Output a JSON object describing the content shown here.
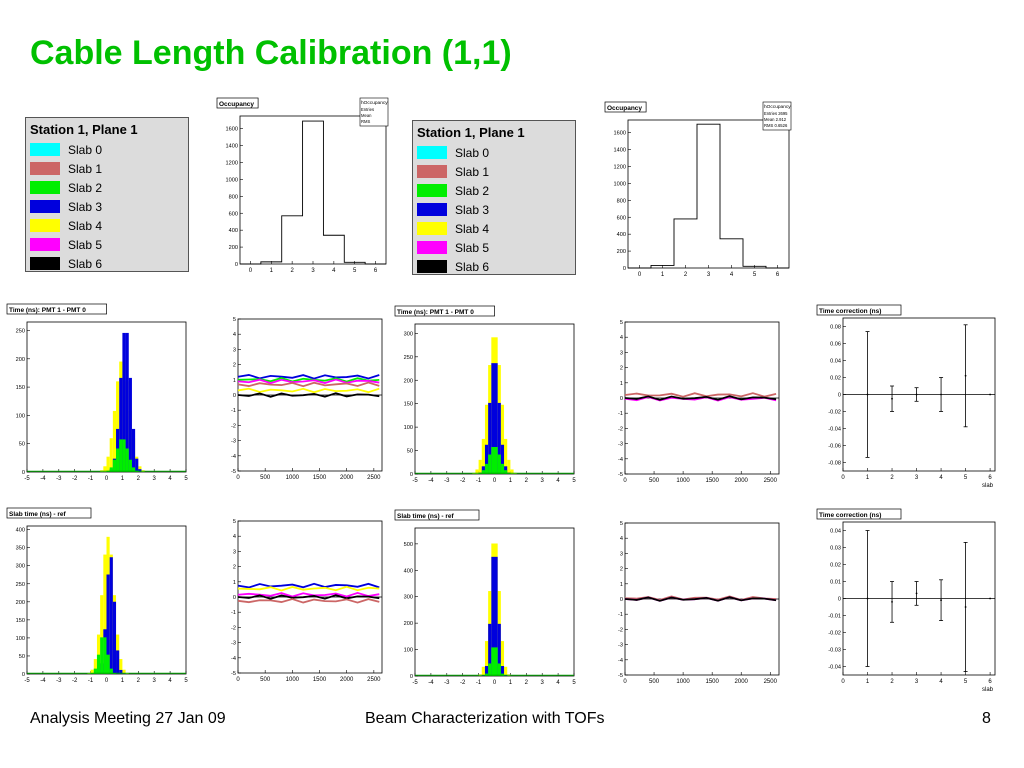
{
  "slide": {
    "title": "Cable Length Calibration (1,1)",
    "footer_left": "Analysis Meeting 27 Jan 09",
    "footer_center": "Beam Characterization with TOFs",
    "page_number": "8"
  },
  "colors": {
    "title": "#00c000",
    "slab0": "#00ffff",
    "slab1": "#cc6666",
    "slab2": "#00ee00",
    "slab3": "#0000dd",
    "slab4": "#ffff00",
    "slab5": "#ff00ff",
    "slab6": "#000000"
  },
  "legends": [
    {
      "title": "Station 1, Plane 1",
      "entries": [
        "Slab 0",
        "Slab 1",
        "Slab 2",
        "Slab 3",
        "Slab 4",
        "Slab 5",
        "Slab 6"
      ]
    },
    {
      "title": "Station 1, Plane 1",
      "entries": [
        "Slab 0",
        "Slab 1",
        "Slab 2",
        "Slab 3",
        "Slab 4",
        "Slab 5",
        "Slab 6"
      ]
    }
  ],
  "chart_data": [
    {
      "type": "bar",
      "title": "Occupancy",
      "stats_box": "hOccupancy",
      "stats_lines": [
        "Entries",
        "Mean",
        "RMS"
      ],
      "x_ticks": [
        "0",
        "1",
        "2",
        "3",
        "4",
        "5",
        "6"
      ],
      "y_ticks": [
        "0",
        "200",
        "400",
        "600",
        "800",
        "1000",
        "1200",
        "1400",
        "1600"
      ],
      "xlim": [
        -0.5,
        6.5
      ],
      "ylim": [
        0,
        1750
      ],
      "bins": [
        0,
        1,
        2,
        3,
        4,
        5,
        6
      ],
      "values": [
        0,
        25,
        570,
        1690,
        340,
        20,
        0
      ]
    },
    {
      "type": "bar",
      "title": "Occupancy",
      "stats_box": "hOccupancy",
      "stats_lines": [
        "Entries 2695",
        "Mean 2.912",
        "RMS 0.6526"
      ],
      "x_ticks": [
        "0",
        "1",
        "2",
        "3",
        "4",
        "5",
        "6"
      ],
      "y_ticks": [
        "0",
        "200",
        "400",
        "600",
        "800",
        "1000",
        "1200",
        "1400",
        "1600"
      ],
      "xlim": [
        -0.5,
        6.5
      ],
      "ylim": [
        0,
        1750
      ],
      "bins": [
        0,
        1,
        2,
        3,
        4,
        5,
        6
      ],
      "values": [
        0,
        30,
        580,
        1700,
        345,
        20,
        0
      ]
    },
    {
      "type": "bar",
      "title": "Time (ns): PMT 1 - PMT 0",
      "x_ticks": [
        "-5",
        "-4",
        "-3",
        "-2",
        "-1",
        "0",
        "1",
        "2",
        "3",
        "4",
        "5"
      ],
      "y_ticks": [
        "0",
        "50",
        "100",
        "150",
        "200",
        "250"
      ],
      "xlim": [
        -5,
        5
      ],
      "ylim": [
        0,
        265
      ],
      "series": [
        {
          "name": "Slab 4",
          "color": "slab4",
          "center": 1.0,
          "sigma": 0.45,
          "peak": 200
        },
        {
          "name": "Slab 3",
          "color": "slab3",
          "center": 1.2,
          "sigma": 0.32,
          "peak": 258
        },
        {
          "name": "Slab 2",
          "color": "slab2",
          "center": 1.0,
          "sigma": 0.35,
          "peak": 60
        }
      ]
    },
    {
      "type": "line",
      "title": "",
      "x_ticks": [
        "0",
        "500",
        "1000",
        "1500",
        "2000",
        "2500"
      ],
      "y_ticks": [
        "-5",
        "-4",
        "-3",
        "-2",
        "-1",
        "0",
        "1",
        "2",
        "3",
        "4",
        "5"
      ],
      "xlim": [
        0,
        2650
      ],
      "ylim": [
        -5,
        5
      ],
      "series": [
        {
          "name": "Slab 3",
          "color": "slab3",
          "y": 1.2
        },
        {
          "name": "Slab 2",
          "color": "slab2",
          "y": 1.0
        },
        {
          "name": "Slab 5",
          "color": "slab5",
          "y": 0.9
        },
        {
          "name": "Slab 1",
          "color": "slab1",
          "y": 0.7
        },
        {
          "name": "Slab 4",
          "color": "slab4",
          "y": 0.3
        },
        {
          "name": "Slab 6",
          "color": "slab6",
          "y": 0.0
        }
      ]
    },
    {
      "type": "bar",
      "title": "Time (ns): PMT 1 - PMT 0",
      "x_ticks": [
        "-5",
        "-4",
        "-3",
        "-2",
        "-1",
        "0",
        "1",
        "2",
        "3",
        "4",
        "5"
      ],
      "y_ticks": [
        "0",
        "50",
        "100",
        "150",
        "200",
        "250",
        "300"
      ],
      "xlim": [
        -5,
        5
      ],
      "ylim": [
        0,
        320
      ],
      "series": [
        {
          "name": "Slab 4",
          "color": "slab4",
          "center": 0.0,
          "sigma": 0.42,
          "peak": 300
        },
        {
          "name": "Slab 3",
          "color": "slab3",
          "center": 0.0,
          "sigma": 0.3,
          "peak": 250
        },
        {
          "name": "Slab 2",
          "color": "slab2",
          "center": 0.0,
          "sigma": 0.35,
          "peak": 60
        }
      ]
    },
    {
      "type": "line",
      "title": "",
      "x_ticks": [
        "0",
        "500",
        "1000",
        "1500",
        "2000",
        "2500"
      ],
      "y_ticks": [
        "-5",
        "-4",
        "-3",
        "-2",
        "-1",
        "0",
        "1",
        "2",
        "3",
        "4",
        "5"
      ],
      "xlim": [
        0,
        2650
      ],
      "ylim": [
        -5,
        5
      ],
      "series": [
        {
          "name": "Slab 1",
          "color": "slab1",
          "y": 0.2
        },
        {
          "name": "Slab 5",
          "color": "slab5",
          "y": -0.05
        },
        {
          "name": "Slab 6",
          "color": "slab6",
          "y": 0.0
        }
      ]
    },
    {
      "type": "scatter",
      "title": "Time correction (ns)",
      "xlabel": "slab",
      "x_ticks": [
        "0",
        "1",
        "2",
        "3",
        "4",
        "5",
        "6"
      ],
      "y_ticks": [
        "-0.08",
        "-0.06",
        "-0.04",
        "-0.02",
        "0",
        "0.02",
        "0.04",
        "0.06",
        "0.08"
      ],
      "xlim": [
        0,
        6.2
      ],
      "ylim": [
        -0.09,
        0.09
      ],
      "points": [
        {
          "x": 1,
          "y": 0.0,
          "err": 0.074
        },
        {
          "x": 2,
          "y": -0.005,
          "err": 0.015
        },
        {
          "x": 3,
          "y": 0.0,
          "err": 0.008
        },
        {
          "x": 4,
          "y": 0.0,
          "err": 0.02
        },
        {
          "x": 5,
          "y": 0.022,
          "err": 0.06
        },
        {
          "x": 6,
          "y": 0.0,
          "err": 0.0
        }
      ]
    },
    {
      "type": "bar",
      "title": "Slab time (ns) - ref",
      "x_ticks": [
        "-5",
        "-4",
        "-3",
        "-2",
        "-1",
        "0",
        "1",
        "2",
        "3",
        "4",
        "5"
      ],
      "y_ticks": [
        "0",
        "50",
        "100",
        "150",
        "200",
        "250",
        "300",
        "350",
        "400"
      ],
      "xlim": [
        -5,
        5
      ],
      "ylim": [
        0,
        410
      ],
      "series": [
        {
          "name": "Slab 4",
          "color": "slab4",
          "center": 0.1,
          "sigma": 0.38,
          "peak": 380
        },
        {
          "name": "Slab 3",
          "color": "slab3",
          "center": 0.25,
          "sigma": 0.25,
          "peak": 330
        },
        {
          "name": "Slab 2",
          "color": "slab2",
          "center": -0.2,
          "sigma": 0.25,
          "peak": 110
        }
      ]
    },
    {
      "type": "line",
      "title": "",
      "x_ticks": [
        "0",
        "500",
        "1000",
        "1500",
        "2000",
        "2500"
      ],
      "y_ticks": [
        "-5",
        "-4",
        "-3",
        "-2",
        "-1",
        "0",
        "1",
        "2",
        "3",
        "4",
        "5"
      ],
      "xlim": [
        0,
        2650
      ],
      "ylim": [
        -5,
        5
      ],
      "series": [
        {
          "name": "Slab 3",
          "color": "slab3",
          "y": 0.75
        },
        {
          "name": "Slab 4",
          "color": "slab4",
          "y": 0.55
        },
        {
          "name": "Slab 5",
          "color": "slab5",
          "y": 0.15
        },
        {
          "name": "Slab 6",
          "color": "slab6",
          "y": 0.0
        },
        {
          "name": "Slab 1",
          "color": "slab1",
          "y": -0.25
        }
      ]
    },
    {
      "type": "bar",
      "title": "Slab time (ns) - ref",
      "x_ticks": [
        "-5",
        "-4",
        "-3",
        "-2",
        "-1",
        "0",
        "1",
        "2",
        "3",
        "4",
        "5"
      ],
      "y_ticks": [
        "0",
        "100",
        "200",
        "300",
        "400",
        "500"
      ],
      "xlim": [
        -5,
        5
      ],
      "ylim": [
        0,
        560
      ],
      "series": [
        {
          "name": "Slab 4",
          "color": "slab4",
          "center": 0.0,
          "sigma": 0.3,
          "peak": 530
        },
        {
          "name": "Slab 3",
          "color": "slab3",
          "center": 0.0,
          "sigma": 0.22,
          "peak": 500
        },
        {
          "name": "Slab 2",
          "color": "slab2",
          "center": 0.0,
          "sigma": 0.22,
          "peak": 120
        }
      ]
    },
    {
      "type": "line",
      "title": "",
      "x_ticks": [
        "0",
        "500",
        "1000",
        "1500",
        "2000",
        "2500"
      ],
      "y_ticks": [
        "-5",
        "-4",
        "-3",
        "-2",
        "-1",
        "0",
        "1",
        "2",
        "3",
        "4",
        "5"
      ],
      "xlim": [
        0,
        2650
      ],
      "ylim": [
        -5,
        5
      ],
      "series": [
        {
          "name": "Slab 1",
          "color": "slab1",
          "y": 0.05
        },
        {
          "name": "Slab 5",
          "color": "slab5",
          "y": 0.0
        },
        {
          "name": "Slab 6",
          "color": "slab6",
          "y": 0.0
        }
      ]
    },
    {
      "type": "scatter",
      "title": "Time correction (ns)",
      "xlabel": "slab",
      "x_ticks": [
        "0",
        "1",
        "2",
        "3",
        "4",
        "5",
        "6"
      ],
      "y_ticks": [
        "-0.04",
        "-0.03",
        "-0.02",
        "-0.01",
        "0",
        "0.01",
        "0.02",
        "0.03",
        "0.04"
      ],
      "xlim": [
        0,
        6.2
      ],
      "ylim": [
        -0.045,
        0.045
      ],
      "points": [
        {
          "x": 1,
          "y": 0.0,
          "err": 0.04
        },
        {
          "x": 2,
          "y": -0.002,
          "err": 0.012
        },
        {
          "x": 3,
          "y": 0.003,
          "err": 0.007
        },
        {
          "x": 4,
          "y": -0.001,
          "err": 0.012
        },
        {
          "x": 5,
          "y": -0.005,
          "err": 0.038
        },
        {
          "x": 6,
          "y": 0.0,
          "err": 0.0
        }
      ]
    }
  ]
}
